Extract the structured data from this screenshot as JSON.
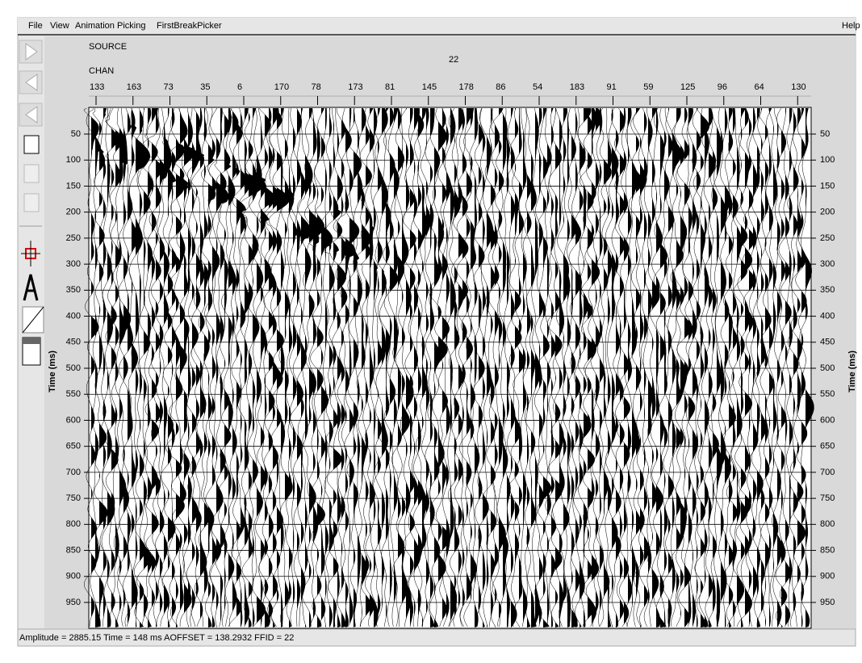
{
  "menu": {
    "items": [
      "File",
      "View",
      "Animation",
      "Picking",
      "FirstBreakPicker"
    ],
    "help": "Help"
  },
  "header": {
    "source_label": "SOURCE",
    "source_value": "22",
    "chan_label": "CHAN",
    "channels": [
      "133",
      "163",
      "73",
      "35",
      "6",
      "170",
      "78",
      "173",
      "81",
      "145",
      "178",
      "86",
      "54",
      "183",
      "91",
      "59",
      "125",
      "96",
      "64",
      "130"
    ]
  },
  "time_axis": {
    "label": "Time (ms)",
    "ticks": [
      50,
      100,
      150,
      200,
      250,
      300,
      350,
      400,
      450,
      500,
      550,
      600,
      650,
      700,
      750,
      800,
      850,
      900,
      950
    ]
  },
  "status": "Amplitude = 2885.15  Time = 148 ms  AOFFSET = 138.2932  FFID = 22"
}
